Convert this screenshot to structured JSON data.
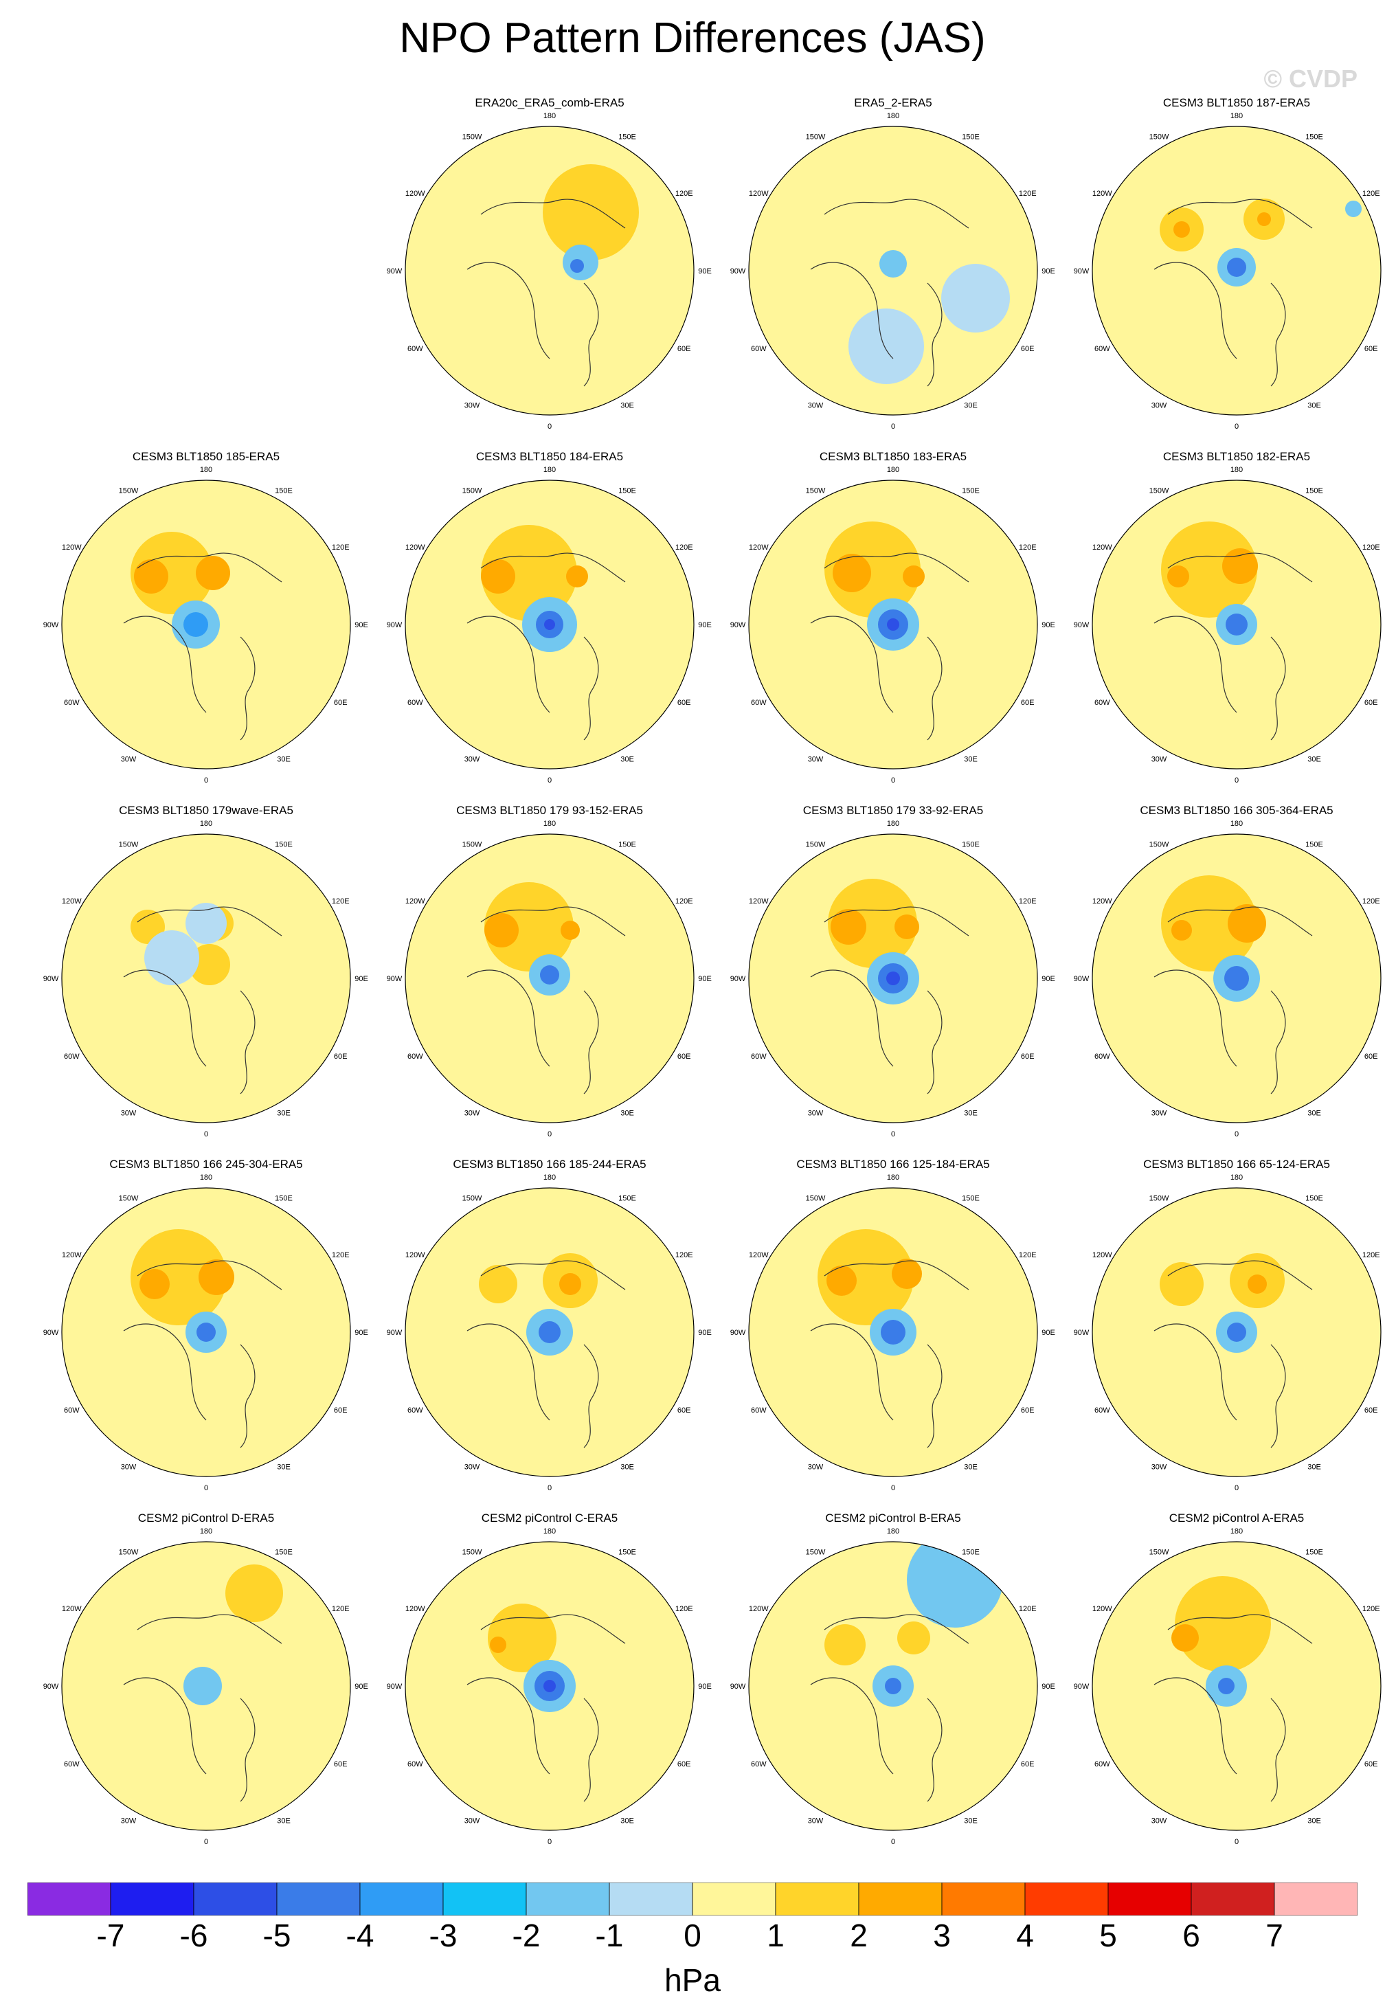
{
  "title": "NPO Pattern Differences (JAS)",
  "watermark": "© CVDP",
  "lon_labels": [
    "180",
    "150E",
    "120E",
    "90E",
    "60E",
    "30E",
    "0",
    "30W",
    "60W",
    "90W",
    "120W",
    "150W"
  ],
  "colorbar": {
    "unit": "hPa",
    "ticks": [
      "-7",
      "-6",
      "-5",
      "-4",
      "-3",
      "-2",
      "-1",
      "0",
      "1",
      "2",
      "3",
      "4",
      "5",
      "6",
      "7"
    ],
    "colors": [
      "#8a2be2",
      "#1e1ef0",
      "#2d4fe6",
      "#3a7ce8",
      "#2f9cf5",
      "#12c2f5",
      "#72c7f0",
      "#b5dcf3",
      "#fff69a",
      "#ffd42a",
      "#ffaa00",
      "#ff7a00",
      "#ff3c00",
      "#e60000",
      "#d0201f",
      "#ffb6b6"
    ]
  },
  "panels": [
    {
      "title": "ERA20c_ERA5_comb-ERA5",
      "features": [
        [
          "dot",
          300,
          125,
          70,
          "pos1"
        ],
        [
          "dot",
          285,
          198,
          26,
          "neg1"
        ],
        [
          "dot",
          280,
          203,
          10,
          "neg3"
        ]
      ]
    },
    {
      "title": "ERA5_2-ERA5",
      "features": [
        [
          "dot",
          230,
          320,
          55,
          "neg0"
        ],
        [
          "dot",
          360,
          250,
          50,
          "neg0"
        ],
        [
          "dot",
          240,
          200,
          20,
          "neg1"
        ]
      ]
    },
    {
      "title": "CESM3 BLT1850 187-ERA5",
      "features": [
        [
          "dot",
          160,
          150,
          32,
          "pos1"
        ],
        [
          "dot",
          160,
          150,
          12,
          "pos2"
        ],
        [
          "dot",
          280,
          135,
          30,
          "pos1"
        ],
        [
          "dot",
          280,
          135,
          10,
          "pos2"
        ],
        [
          "dot",
          240,
          205,
          28,
          "neg1"
        ],
        [
          "dot",
          240,
          205,
          14,
          "neg3"
        ],
        [
          "dot",
          410,
          120,
          12,
          "neg1"
        ]
      ]
    },
    {
      "title": "CESM3 BLT1850 185-ERA5",
      "features": [
        [
          "dot",
          190,
          135,
          60,
          "pos1"
        ],
        [
          "dot",
          160,
          140,
          25,
          "pos2"
        ],
        [
          "dot",
          250,
          135,
          25,
          "pos2"
        ],
        [
          "dot",
          225,
          210,
          35,
          "neg1"
        ],
        [
          "dot",
          225,
          210,
          18,
          "neg2"
        ]
      ]
    },
    {
      "title": "CESM3 BLT1850 184-ERA5",
      "features": [
        [
          "dot",
          210,
          135,
          70,
          "pos1"
        ],
        [
          "dot",
          165,
          140,
          25,
          "pos2"
        ],
        [
          "dot",
          280,
          140,
          16,
          "pos2"
        ],
        [
          "dot",
          240,
          210,
          40,
          "neg1"
        ],
        [
          "dot",
          240,
          210,
          20,
          "neg3"
        ],
        [
          "dot",
          240,
          210,
          8,
          "neg4"
        ]
      ]
    },
    {
      "title": "CESM3 BLT1850 183-ERA5",
      "features": [
        [
          "dot",
          210,
          130,
          70,
          "pos1"
        ],
        [
          "dot",
          180,
          135,
          28,
          "pos2"
        ],
        [
          "dot",
          270,
          140,
          16,
          "pos2"
        ],
        [
          "dot",
          240,
          210,
          38,
          "neg1"
        ],
        [
          "dot",
          240,
          210,
          22,
          "neg3"
        ],
        [
          "dot",
          240,
          210,
          9,
          "neg4"
        ]
      ]
    },
    {
      "title": "CESM3 BLT1850 182-ERA5",
      "features": [
        [
          "dot",
          200,
          130,
          70,
          "pos1"
        ],
        [
          "dot",
          155,
          140,
          16,
          "pos2"
        ],
        [
          "dot",
          245,
          125,
          26,
          "pos2"
        ],
        [
          "dot",
          240,
          210,
          30,
          "neg1"
        ],
        [
          "dot",
          240,
          210,
          16,
          "neg3"
        ]
      ]
    },
    {
      "title": "CESM3 BLT1850 179wave-ERA5",
      "features": [
        [
          "dot",
          155,
          135,
          25,
          "pos1"
        ],
        [
          "dot",
          255,
          130,
          25,
          "pos1"
        ],
        [
          "dot",
          245,
          190,
          30,
          "pos1"
        ],
        [
          "dot",
          190,
          180,
          40,
          "neg0"
        ],
        [
          "dot",
          240,
          130,
          30,
          "neg0"
        ]
      ]
    },
    {
      "title": "CESM3 BLT1850 179 93-152-ERA5",
      "features": [
        [
          "dot",
          210,
          135,
          65,
          "pos1"
        ],
        [
          "dot",
          170,
          140,
          25,
          "pos2"
        ],
        [
          "dot",
          270,
          140,
          14,
          "pos2"
        ],
        [
          "dot",
          240,
          205,
          30,
          "neg1"
        ],
        [
          "dot",
          240,
          205,
          14,
          "neg3"
        ]
      ]
    },
    {
      "title": "CESM3 BLT1850 179 33-92-ERA5",
      "features": [
        [
          "dot",
          210,
          130,
          65,
          "pos1"
        ],
        [
          "dot",
          175,
          135,
          26,
          "pos2"
        ],
        [
          "dot",
          260,
          135,
          18,
          "pos2"
        ],
        [
          "dot",
          240,
          210,
          38,
          "neg1"
        ],
        [
          "dot",
          240,
          210,
          22,
          "neg3"
        ],
        [
          "dot",
          240,
          210,
          10,
          "neg4"
        ]
      ]
    },
    {
      "title": "CESM3 BLT1850 166 305-364-ERA5",
      "features": [
        [
          "dot",
          200,
          130,
          70,
          "pos1"
        ],
        [
          "dot",
          160,
          140,
          15,
          "pos2"
        ],
        [
          "dot",
          255,
          130,
          28,
          "pos2"
        ],
        [
          "dot",
          240,
          210,
          34,
          "neg1"
        ],
        [
          "dot",
          240,
          210,
          18,
          "neg3"
        ]
      ]
    },
    {
      "title": "CESM3 BLT1850 166 245-304-ERA5",
      "features": [
        [
          "dot",
          200,
          130,
          70,
          "pos1"
        ],
        [
          "dot",
          165,
          140,
          22,
          "pos2"
        ],
        [
          "dot",
          255,
          130,
          26,
          "pos2"
        ],
        [
          "dot",
          240,
          210,
          30,
          "neg1"
        ],
        [
          "dot",
          240,
          210,
          14,
          "neg3"
        ]
      ]
    },
    {
      "title": "CESM3 BLT1850 166 185-244-ERA5",
      "features": [
        [
          "dot",
          165,
          140,
          28,
          "pos1"
        ],
        [
          "dot",
          270,
          135,
          40,
          "pos1"
        ],
        [
          "dot",
          270,
          140,
          16,
          "pos2"
        ],
        [
          "dot",
          240,
          210,
          34,
          "neg1"
        ],
        [
          "dot",
          240,
          210,
          16,
          "neg3"
        ]
      ]
    },
    {
      "title": "CESM3 BLT1850 166 125-184-ERA5",
      "features": [
        [
          "dot",
          200,
          130,
          70,
          "pos1"
        ],
        [
          "dot",
          165,
          135,
          22,
          "pos2"
        ],
        [
          "dot",
          260,
          125,
          22,
          "pos2"
        ],
        [
          "dot",
          240,
          210,
          34,
          "neg1"
        ],
        [
          "dot",
          240,
          210,
          18,
          "neg3"
        ]
      ]
    },
    {
      "title": "CESM3 BLT1850 166 65-124-ERA5",
      "features": [
        [
          "dot",
          160,
          140,
          32,
          "pos1"
        ],
        [
          "dot",
          270,
          135,
          40,
          "pos1"
        ],
        [
          "dot",
          270,
          140,
          14,
          "pos2"
        ],
        [
          "dot",
          240,
          210,
          30,
          "neg1"
        ],
        [
          "dot",
          240,
          210,
          14,
          "neg3"
        ]
      ]
    },
    {
      "title": "CESM2 piControl D-ERA5",
      "features": [
        [
          "dot",
          310,
          75,
          42,
          "pos1"
        ],
        [
          "dot",
          235,
          210,
          28,
          "neg1"
        ]
      ]
    },
    {
      "title": "CESM2 piControl C-ERA5",
      "features": [
        [
          "dot",
          200,
          140,
          50,
          "pos1"
        ],
        [
          "dot",
          165,
          150,
          12,
          "pos2"
        ],
        [
          "dot",
          240,
          210,
          38,
          "neg1"
        ],
        [
          "dot",
          240,
          210,
          22,
          "neg3"
        ],
        [
          "dot",
          240,
          210,
          9,
          "neg4"
        ]
      ]
    },
    {
      "title": "CESM2 piControl B-ERA5",
      "features": [
        [
          "dot",
          330,
          55,
          70,
          "neg1"
        ],
        [
          "dot",
          170,
          150,
          30,
          "pos1"
        ],
        [
          "dot",
          270,
          140,
          24,
          "pos1"
        ],
        [
          "dot",
          240,
          210,
          30,
          "neg1"
        ],
        [
          "dot",
          240,
          210,
          12,
          "neg3"
        ]
      ]
    },
    {
      "title": "CESM2 piControl A-ERA5",
      "features": [
        [
          "dot",
          220,
          120,
          70,
          "pos1"
        ],
        [
          "dot",
          165,
          140,
          20,
          "pos2"
        ],
        [
          "dot",
          225,
          210,
          30,
          "neg1"
        ],
        [
          "dot",
          225,
          210,
          12,
          "neg3"
        ]
      ]
    }
  ]
}
